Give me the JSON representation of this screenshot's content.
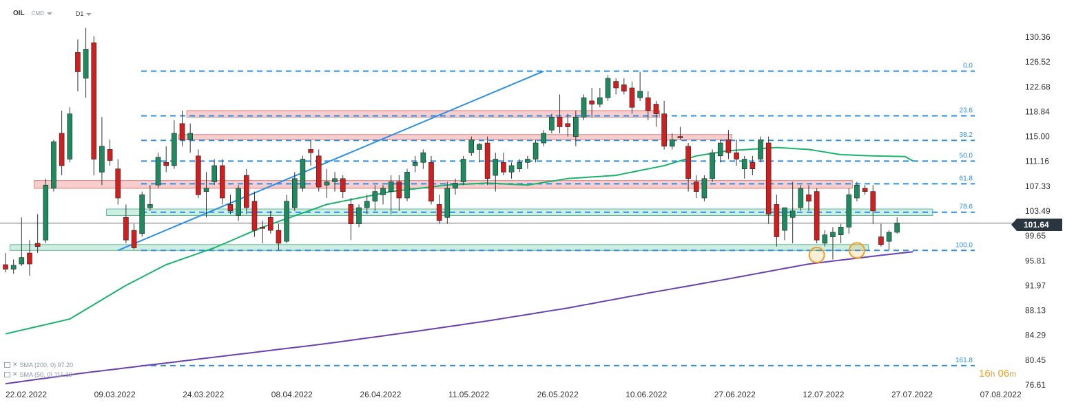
{
  "header": {
    "symbol": "OIL",
    "source": "CMD",
    "timeframe": "D1"
  },
  "colors": {
    "up": "#1e8a5f",
    "down": "#d11f1f",
    "fib": "#2a8fe6",
    "sma50": "#19b36b",
    "sma200": "#6a40b0",
    "resistance_fill": "#f6c9c9",
    "resistance_stroke": "#e07070",
    "support_fill": "#c9ece0",
    "support_stroke": "#46b88a",
    "trendline": "#2a8fe6",
    "highlight_circle": "#f0a020",
    "price_line": "#2b3540"
  },
  "legend": [
    {
      "label": "SMA (200, 0) 97.20"
    },
    {
      "label": "SMA (50, 0) 111.19"
    }
  ],
  "timer": {
    "hours": "16",
    "h_unit": "h",
    "minutes": "06",
    "m_unit": "m"
  },
  "price_tag": "101.64",
  "chart_data": {
    "type": "candlestick",
    "y_axis": {
      "min": 76.61,
      "max": 130.36,
      "ticks": [
        "130.36",
        "126.52",
        "122.68",
        "118.84",
        "115.00",
        "111.16",
        "107.33",
        "103.49",
        "99.65",
        "95.81",
        "91.97",
        "88.13",
        "84.29",
        "80.45",
        "76.61"
      ]
    },
    "x_axis": {
      "ticks": [
        "22.02.2022",
        "09.03.2022",
        "24.03.2022",
        "08.04.2022",
        "26.04.2022",
        "11.05.2022",
        "26.05.2022",
        "10.06.2022",
        "27.06.2022",
        "12.07.2022",
        "27.07.2022",
        "07.08.2022"
      ]
    },
    "last_price": 101.64,
    "fibonacci": [
      {
        "label": "0.0",
        "value": 125.1
      },
      {
        "label": "23.6",
        "value": 118.2
      },
      {
        "label": "38.2",
        "value": 114.4
      },
      {
        "label": "50.0",
        "value": 111.2
      },
      {
        "label": "61.8",
        "value": 107.7
      },
      {
        "label": "78.6",
        "value": 103.3
      },
      {
        "label": "100.0",
        "value": 97.4
      },
      {
        "label": "161.8",
        "value": 79.6
      }
    ],
    "zones": [
      {
        "kind": "resistance",
        "from": "25.03.2022",
        "to": "16.06.2022",
        "low": 118.0,
        "high": 119.0
      },
      {
        "kind": "resistance",
        "from": "24.03.2022",
        "to": "29.06.2022",
        "low": 114.5,
        "high": 115.3
      },
      {
        "kind": "resistance",
        "from": "28.02.2022",
        "to": "20.07.2022",
        "low": 107.0,
        "high": 108.2
      },
      {
        "kind": "support",
        "from": "11.03.2022",
        "to": "24.07.2022",
        "low": 102.8,
        "high": 103.8
      },
      {
        "kind": "support",
        "from": "23.02.2022",
        "to": "22.07.2022",
        "low": 97.4,
        "high": 98.3
      }
    ],
    "trendline": {
      "from": {
        "x": "14.03.2022",
        "y": 97.4
      },
      "to": {
        "x": "27.05.2022",
        "y": 125.1
      }
    },
    "highlights": [
      {
        "x": "14.07.2022",
        "y": 96.7
      },
      {
        "x": "21.07.2022",
        "y": 97.4
      }
    ],
    "candles": [
      {
        "x": "22.02",
        "o": 95.2,
        "h": 97.0,
        "l": 94.0,
        "c": 94.5
      },
      {
        "x": "23.02",
        "o": 94.5,
        "h": 96.0,
        "l": 93.8,
        "c": 95.1
      },
      {
        "x": "24.02",
        "o": 95.3,
        "h": 102.5,
        "l": 95.0,
        "c": 96.3
      },
      {
        "x": "25.02",
        "o": 97.0,
        "h": 99.0,
        "l": 93.5,
        "c": 95.3
      },
      {
        "x": "28.02",
        "o": 98.5,
        "h": 103.0,
        "l": 97.0,
        "c": 98.0
      },
      {
        "x": "01.03",
        "o": 99.0,
        "h": 108.5,
        "l": 98.5,
        "c": 107.5
      },
      {
        "x": "02.03",
        "o": 107.0,
        "h": 114.5,
        "l": 106.5,
        "c": 114.2
      },
      {
        "x": "03.03",
        "o": 115.5,
        "h": 119.0,
        "l": 109.0,
        "c": 110.5
      },
      {
        "x": "04.03",
        "o": 111.5,
        "h": 119.5,
        "l": 111.0,
        "c": 118.5
      },
      {
        "x": "07.03",
        "o": 128.0,
        "h": 130.0,
        "l": 122.0,
        "c": 125.0
      },
      {
        "x": "08.03",
        "o": 124.0,
        "h": 131.8,
        "l": 121.0,
        "c": 128.5
      },
      {
        "x": "09.03",
        "o": 129.5,
        "h": 130.5,
        "l": 109.0,
        "c": 111.5
      },
      {
        "x": "10.03",
        "o": 109.5,
        "h": 118.0,
        "l": 107.5,
        "c": 113.5
      },
      {
        "x": "11.03",
        "o": 113.0,
        "h": 114.5,
        "l": 110.5,
        "c": 111.3
      },
      {
        "x": "14.03",
        "o": 110.0,
        "h": 111.5,
        "l": 104.5,
        "c": 105.5
      },
      {
        "x": "15.03",
        "o": 102.5,
        "h": 104.5,
        "l": 98.5,
        "c": 99.0
      },
      {
        "x": "16.03",
        "o": 100.5,
        "h": 101.5,
        "l": 97.5,
        "c": 97.8
      },
      {
        "x": "17.03",
        "o": 100.0,
        "h": 106.5,
        "l": 99.5,
        "c": 106.0
      },
      {
        "x": "18.03",
        "o": 104.0,
        "h": 107.5,
        "l": 103.5,
        "c": 104.5
      },
      {
        "x": "21.03",
        "o": 107.5,
        "h": 112.5,
        "l": 107.0,
        "c": 111.8
      },
      {
        "x": "22.03",
        "o": 111.0,
        "h": 113.5,
        "l": 109.5,
        "c": 110.5
      },
      {
        "x": "23.03",
        "o": 110.5,
        "h": 117.5,
        "l": 110.0,
        "c": 115.5
      },
      {
        "x": "24.03",
        "o": 117.0,
        "h": 119.0,
        "l": 113.5,
        "c": 114.5
      },
      {
        "x": "25.03",
        "o": 114.5,
        "h": 117.0,
        "l": 112.5,
        "c": 115.5
      },
      {
        "x": "28.03",
        "o": 112.0,
        "h": 113.0,
        "l": 105.5,
        "c": 106.0
      },
      {
        "x": "29.03",
        "o": 106.5,
        "h": 109.5,
        "l": 102.5,
        "c": 107.0
      },
      {
        "x": "30.03",
        "o": 108.0,
        "h": 111.5,
        "l": 107.5,
        "c": 110.5
      },
      {
        "x": "31.03",
        "o": 110.5,
        "h": 111.5,
        "l": 104.5,
        "c": 105.5
      },
      {
        "x": "01.04",
        "o": 104.5,
        "h": 106.0,
        "l": 103.0,
        "c": 103.5
      },
      {
        "x": "04.04",
        "o": 102.8,
        "h": 107.5,
        "l": 102.0,
        "c": 107.0
      },
      {
        "x": "05.04",
        "o": 109.0,
        "h": 110.0,
        "l": 103.0,
        "c": 104.0
      },
      {
        "x": "06.04",
        "o": 105.0,
        "h": 106.5,
        "l": 99.5,
        "c": 100.5
      },
      {
        "x": "07.04",
        "o": 101.0,
        "h": 102.0,
        "l": 98.5,
        "c": 100.8
      },
      {
        "x": "08.04",
        "o": 102.5,
        "h": 103.5,
        "l": 100.0,
        "c": 100.5
      },
      {
        "x": "11.04",
        "o": 100.5,
        "h": 101.5,
        "l": 97.5,
        "c": 98.5
      },
      {
        "x": "12.04",
        "o": 98.8,
        "h": 106.0,
        "l": 98.5,
        "c": 105.0
      },
      {
        "x": "13.04",
        "o": 104.0,
        "h": 109.5,
        "l": 103.5,
        "c": 108.5
      },
      {
        "x": "14.04",
        "o": 107.0,
        "h": 112.0,
        "l": 106.5,
        "c": 111.5
      },
      {
        "x": "18.04",
        "o": 113.0,
        "h": 114.5,
        "l": 110.5,
        "c": 112.5
      },
      {
        "x": "19.04",
        "o": 112.0,
        "h": 113.0,
        "l": 106.5,
        "c": 107.2
      },
      {
        "x": "20.04",
        "o": 107.5,
        "h": 110.0,
        "l": 105.5,
        "c": 108.0
      },
      {
        "x": "21.04",
        "o": 108.0,
        "h": 109.5,
        "l": 106.5,
        "c": 108.5
      },
      {
        "x": "22.04",
        "o": 108.5,
        "h": 109.0,
        "l": 105.5,
        "c": 106.5
      },
      {
        "x": "25.04",
        "o": 104.5,
        "h": 105.5,
        "l": 99.0,
        "c": 101.5
      },
      {
        "x": "26.04",
        "o": 101.5,
        "h": 104.5,
        "l": 101.0,
        "c": 104.0
      },
      {
        "x": "27.04",
        "o": 104.0,
        "h": 106.0,
        "l": 103.0,
        "c": 105.0
      },
      {
        "x": "28.04",
        "o": 105.0,
        "h": 107.5,
        "l": 103.5,
        "c": 106.5
      },
      {
        "x": "29.04",
        "o": 106.0,
        "h": 107.5,
        "l": 104.5,
        "c": 107.0
      },
      {
        "x": "02.05",
        "o": 106.5,
        "h": 109.0,
        "l": 103.0,
        "c": 108.0
      },
      {
        "x": "03.05",
        "o": 108.0,
        "h": 109.0,
        "l": 103.5,
        "c": 105.5
      },
      {
        "x": "04.05",
        "o": 105.5,
        "h": 110.0,
        "l": 105.0,
        "c": 109.5
      },
      {
        "x": "05.05",
        "o": 110.5,
        "h": 112.0,
        "l": 109.5,
        "c": 111.0
      },
      {
        "x": "06.05",
        "o": 111.0,
        "h": 113.0,
        "l": 110.0,
        "c": 112.5
      },
      {
        "x": "09.05",
        "o": 111.0,
        "h": 112.0,
        "l": 104.5,
        "c": 105.0
      },
      {
        "x": "10.05",
        "o": 104.5,
        "h": 106.0,
        "l": 101.5,
        "c": 102.0
      },
      {
        "x": "11.05",
        "o": 102.5,
        "h": 108.0,
        "l": 101.5,
        "c": 107.0
      },
      {
        "x": "12.05",
        "o": 107.0,
        "h": 108.5,
        "l": 106.0,
        "c": 107.8
      },
      {
        "x": "13.05",
        "o": 108.0,
        "h": 112.0,
        "l": 107.5,
        "c": 111.5
      },
      {
        "x": "16.05",
        "o": 112.5,
        "h": 115.0,
        "l": 112.0,
        "c": 114.5
      },
      {
        "x": "17.05",
        "o": 113.0,
        "h": 114.0,
        "l": 111.0,
        "c": 113.8
      },
      {
        "x": "18.05",
        "o": 114.0,
        "h": 115.0,
        "l": 107.5,
        "c": 108.5
      },
      {
        "x": "19.05",
        "o": 109.0,
        "h": 112.5,
        "l": 106.5,
        "c": 111.5
      },
      {
        "x": "20.05",
        "o": 111.0,
        "h": 112.5,
        "l": 109.0,
        "c": 109.5
      },
      {
        "x": "23.05",
        "o": 109.5,
        "h": 111.0,
        "l": 108.5,
        "c": 110.5
      },
      {
        "x": "24.05",
        "o": 110.0,
        "h": 111.5,
        "l": 109.5,
        "c": 111.0
      },
      {
        "x": "25.05",
        "o": 111.0,
        "h": 112.0,
        "l": 110.0,
        "c": 111.5
      },
      {
        "x": "26.05",
        "o": 111.5,
        "h": 114.5,
        "l": 111.0,
        "c": 114.0
      },
      {
        "x": "27.05",
        "o": 114.0,
        "h": 116.0,
        "l": 113.5,
        "c": 115.5
      },
      {
        "x": "30.05",
        "o": 116.0,
        "h": 118.5,
        "l": 115.5,
        "c": 118.0
      },
      {
        "x": "31.05",
        "o": 118.0,
        "h": 121.5,
        "l": 115.5,
        "c": 116.5
      },
      {
        "x": "01.06",
        "o": 117.0,
        "h": 118.5,
        "l": 115.0,
        "c": 116.5
      },
      {
        "x": "02.06",
        "o": 115.0,
        "h": 119.0,
        "l": 113.5,
        "c": 118.0
      },
      {
        "x": "03.06",
        "o": 118.0,
        "h": 121.5,
        "l": 117.5,
        "c": 121.0
      },
      {
        "x": "06.06",
        "o": 120.5,
        "h": 122.5,
        "l": 118.0,
        "c": 120.0
      },
      {
        "x": "07.06",
        "o": 120.0,
        "h": 122.5,
        "l": 119.5,
        "c": 121.0
      },
      {
        "x": "08.06",
        "o": 121.0,
        "h": 124.5,
        "l": 120.5,
        "c": 124.0
      },
      {
        "x": "09.06",
        "o": 123.5,
        "h": 124.0,
        "l": 121.5,
        "c": 122.5
      },
      {
        "x": "10.06",
        "o": 123.0,
        "h": 124.0,
        "l": 121.5,
        "c": 122.0
      },
      {
        "x": "13.06",
        "o": 122.5,
        "h": 123.5,
        "l": 118.5,
        "c": 119.5
      },
      {
        "x": "14.06",
        "o": 121.0,
        "h": 125.0,
        "l": 120.5,
        "c": 122.0
      },
      {
        "x": "15.06",
        "o": 121.0,
        "h": 122.0,
        "l": 117.5,
        "c": 119.0
      },
      {
        "x": "16.06",
        "o": 120.0,
        "h": 120.5,
        "l": 116.5,
        "c": 118.5
      },
      {
        "x": "17.06",
        "o": 118.5,
        "h": 120.5,
        "l": 113.0,
        "c": 113.5
      },
      {
        "x": "20.06",
        "o": 113.5,
        "h": 115.5,
        "l": 113.0,
        "c": 114.5
      },
      {
        "x": "21.06",
        "o": 115.0,
        "h": 116.5,
        "l": 114.5,
        "c": 114.8
      },
      {
        "x": "22.06",
        "o": 113.5,
        "h": 114.0,
        "l": 106.5,
        "c": 108.5
      },
      {
        "x": "23.06",
        "o": 108.0,
        "h": 109.0,
        "l": 105.5,
        "c": 106.5
      },
      {
        "x": "24.06",
        "o": 105.5,
        "h": 109.0,
        "l": 105.0,
        "c": 108.5
      },
      {
        "x": "27.06",
        "o": 108.5,
        "h": 113.0,
        "l": 108.0,
        "c": 112.5
      },
      {
        "x": "28.06",
        "o": 112.0,
        "h": 114.5,
        "l": 111.0,
        "c": 114.0
      },
      {
        "x": "29.06",
        "o": 114.5,
        "h": 116.0,
        "l": 111.5,
        "c": 112.5
      },
      {
        "x": "30.06",
        "o": 112.5,
        "h": 114.5,
        "l": 110.5,
        "c": 111.5
      },
      {
        "x": "01.07",
        "o": 110.0,
        "h": 112.0,
        "l": 108.5,
        "c": 111.5
      },
      {
        "x": "04.07",
        "o": 111.0,
        "h": 112.0,
        "l": 109.0,
        "c": 110.0
      },
      {
        "x": "05.07",
        "o": 111.5,
        "h": 115.0,
        "l": 111.0,
        "c": 114.5
      },
      {
        "x": "06.07",
        "o": 114.0,
        "h": 115.0,
        "l": 101.5,
        "c": 103.0
      },
      {
        "x": "07.07",
        "o": 104.5,
        "h": 106.0,
        "l": 98.0,
        "c": 99.5
      },
      {
        "x": "08.07",
        "o": 100.5,
        "h": 104.0,
        "l": 99.0,
        "c": 104.0
      },
      {
        "x": "11.07",
        "o": 102.5,
        "h": 108.0,
        "l": 98.5,
        "c": 103.5
      },
      {
        "x": "12.07",
        "o": 104.0,
        "h": 107.5,
        "l": 103.5,
        "c": 107.0
      },
      {
        "x": "13.07",
        "o": 106.0,
        "h": 107.5,
        "l": 103.5,
        "c": 105.0
      },
      {
        "x": "14.07",
        "o": 106.5,
        "h": 107.0,
        "l": 98.5,
        "c": 99.0
      },
      {
        "x": "15.07",
        "o": 98.5,
        "h": 100.5,
        "l": 98.0,
        "c": 99.8
      },
      {
        "x": "18.07",
        "o": 99.5,
        "h": 101.0,
        "l": 96.0,
        "c": 100.2
      },
      {
        "x": "19.07",
        "o": 99.8,
        "h": 101.5,
        "l": 98.5,
        "c": 101.0
      },
      {
        "x": "20.07",
        "o": 101.0,
        "h": 107.0,
        "l": 100.0,
        "c": 106.0
      },
      {
        "x": "21.07",
        "o": 105.5,
        "h": 108.0,
        "l": 105.0,
        "c": 107.5
      },
      {
        "x": "22.07",
        "o": 107.0,
        "h": 107.5,
        "l": 106.0,
        "c": 106.5
      },
      {
        "x": "25.07",
        "o": 106.5,
        "h": 107.5,
        "l": 101.5,
        "c": 103.5
      },
      {
        "x": "26.07",
        "o": 99.5,
        "h": 101.5,
        "l": 98.0,
        "c": 98.3
      },
      {
        "x": "27.07",
        "o": 98.8,
        "h": 100.5,
        "l": 97.5,
        "c": 100.2
      },
      {
        "x": "28.07",
        "o": 100.2,
        "h": 102.5,
        "l": 100.0,
        "c": 101.64
      }
    ],
    "sma50": [
      {
        "i": 0,
        "y": 84.5
      },
      {
        "i": 8,
        "y": 86.8
      },
      {
        "i": 15,
        "y": 92.0
      },
      {
        "i": 20,
        "y": 95.2
      },
      {
        "i": 26,
        "y": 97.8
      },
      {
        "i": 32,
        "y": 101.0
      },
      {
        "i": 40,
        "y": 104.5
      },
      {
        "i": 48,
        "y": 106.5
      },
      {
        "i": 55,
        "y": 107.5
      },
      {
        "i": 60,
        "y": 107.8
      },
      {
        "i": 65,
        "y": 107.5
      },
      {
        "i": 70,
        "y": 108.5
      },
      {
        "i": 76,
        "y": 109.0
      },
      {
        "i": 82,
        "y": 110.5
      },
      {
        "i": 86,
        "y": 112.0
      },
      {
        "i": 90,
        "y": 112.8
      },
      {
        "i": 96,
        "y": 113.3
      },
      {
        "i": 100,
        "y": 113.0
      },
      {
        "i": 104,
        "y": 112.2
      },
      {
        "i": 108,
        "y": 112.0
      },
      {
        "i": 112,
        "y": 111.9
      },
      {
        "i": 113,
        "y": 111.2
      }
    ],
    "sma200": [
      {
        "i": 0,
        "y": 76.8
      },
      {
        "i": 10,
        "y": 78.5
      },
      {
        "i": 20,
        "y": 80.0
      },
      {
        "i": 30,
        "y": 81.5
      },
      {
        "i": 40,
        "y": 83.0
      },
      {
        "i": 50,
        "y": 84.7
      },
      {
        "i": 60,
        "y": 86.5
      },
      {
        "i": 70,
        "y": 88.5
      },
      {
        "i": 80,
        "y": 90.8
      },
      {
        "i": 90,
        "y": 93.0
      },
      {
        "i": 100,
        "y": 95.3
      },
      {
        "i": 108,
        "y": 96.5
      },
      {
        "i": 113,
        "y": 97.2
      }
    ]
  }
}
